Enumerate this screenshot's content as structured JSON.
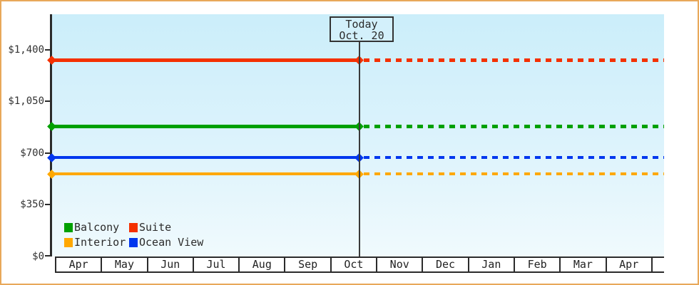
{
  "chart_data": {
    "type": "line",
    "title": "",
    "x_categories": [
      "Apr",
      "May",
      "Jun",
      "Jul",
      "Aug",
      "Sep",
      "Oct",
      "Nov",
      "Dec",
      "Jan",
      "Feb",
      "Mar",
      "Apr"
    ],
    "y_ticks": [
      "$0",
      "$350",
      "$700",
      "$1,050",
      "$1,400"
    ],
    "ylim": [
      0,
      1400
    ],
    "grid": false,
    "legend_position": "bottom-left-inside",
    "today": {
      "line1": "Today",
      "line2": "Oct. 20"
    },
    "projection_style": "solid-before-today, dashed-after-today, diamond-markers-at-axis-and-today",
    "series": [
      {
        "name": "Suite",
        "value": 1330,
        "color": "#f43000"
      },
      {
        "name": "Balcony",
        "value": 880,
        "color": "#00a000"
      },
      {
        "name": "Ocean View",
        "value": 670,
        "color": "#0036ee"
      },
      {
        "name": "Interior",
        "value": 560,
        "color": "#ffa800"
      }
    ]
  },
  "legend": {
    "items": [
      {
        "label": "Balcony",
        "color": "#00a000"
      },
      {
        "label": "Suite",
        "color": "#f43000"
      },
      {
        "label": "Interior",
        "color": "#ffa800"
      },
      {
        "label": "Ocean View",
        "color": "#0036ee"
      }
    ]
  },
  "colors": {
    "frame_border": "#e8a85a",
    "plot_bg_top": "#cbeefa",
    "plot_bg_bottom": "#f0fafd",
    "axis": "#2b2b2b",
    "text": "#333333"
  }
}
